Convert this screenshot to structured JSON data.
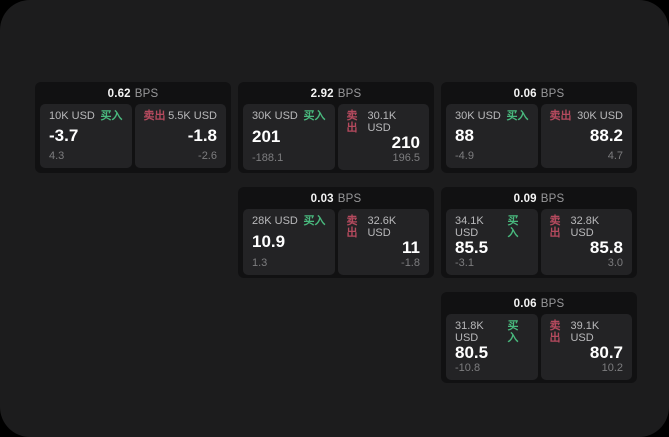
{
  "labels": {
    "bps_unit": "BPS",
    "buy": "买入",
    "sell": "卖出"
  },
  "colors": {
    "surface_bg": "#1c1c1d",
    "card_bg": "#111112",
    "panel_bg": "#232325",
    "buy_green": "#49b97e",
    "sell_red": "#b54a5e",
    "value_white": "#f5f5f5",
    "label_gray": "#b9b9bb",
    "muted_gray": "#7d7d7f",
    "bps_gray": "#98989a"
  },
  "cards": [
    {
      "row": 1,
      "col": 1,
      "spread_bps": "0.62",
      "buy": {
        "size": "10K USD",
        "price": "-3.7",
        "sub": "4.3"
      },
      "sell": {
        "size": "5.5K USD",
        "price": "-1.8",
        "sub": "-2.6"
      }
    },
    {
      "row": 1,
      "col": 2,
      "spread_bps": "2.92",
      "buy": {
        "size": "30K USD",
        "price": "201",
        "sub": "-188.1"
      },
      "sell": {
        "size": "30.1K USD",
        "price": "210",
        "sub": "196.5"
      }
    },
    {
      "row": 1,
      "col": 3,
      "spread_bps": "0.06",
      "buy": {
        "size": "30K USD",
        "price": "88",
        "sub": "-4.9"
      },
      "sell": {
        "size": "30K USD",
        "price": "88.2",
        "sub": "4.7"
      }
    },
    {
      "row": 2,
      "col": 2,
      "spread_bps": "0.03",
      "buy": {
        "size": "28K USD",
        "price": "10.9",
        "sub": "1.3"
      },
      "sell": {
        "size": "32.6K USD",
        "price": "11",
        "sub": "-1.8"
      }
    },
    {
      "row": 2,
      "col": 3,
      "spread_bps": "0.09",
      "buy": {
        "size": "34.1K USD",
        "price": "85.5",
        "sub": "-3.1"
      },
      "sell": {
        "size": "32.8K USD",
        "price": "85.8",
        "sub": "3.0"
      }
    },
    {
      "row": 3,
      "col": 3,
      "spread_bps": "0.06",
      "buy": {
        "size": "31.8K USD",
        "price": "80.5",
        "sub": "-10.8"
      },
      "sell": {
        "size": "39.1K USD",
        "price": "80.7",
        "sub": "10.2"
      }
    }
  ]
}
